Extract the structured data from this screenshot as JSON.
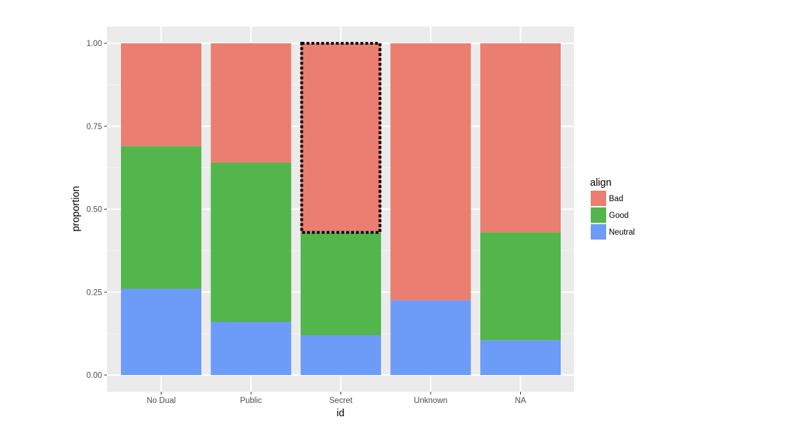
{
  "chart_data": {
    "type": "bar",
    "stacked": true,
    "xlabel": "id",
    "ylabel": "proportion",
    "categories": [
      "No Dual",
      "Public",
      "Secret",
      "Unknown",
      "NA"
    ],
    "ylim": [
      0,
      1
    ],
    "y_ticks": [
      "0.00",
      "0.25",
      "0.50",
      "0.75",
      "1.00"
    ],
    "series": [
      {
        "name": "Neutral",
        "color": "#6D9BF8",
        "values": [
          0.26,
          0.16,
          0.12,
          0.225,
          0.105
        ]
      },
      {
        "name": "Good",
        "color": "#53B64C",
        "values": [
          0.43,
          0.48,
          0.31,
          0.0,
          0.325
        ]
      },
      {
        "name": "Bad",
        "color": "#E97E71",
        "values": [
          0.31,
          0.36,
          0.57,
          0.775,
          0.57
        ]
      }
    ],
    "legend": {
      "title": "align",
      "position": "right",
      "entries": [
        "Bad",
        "Good",
        "Neutral"
      ]
    },
    "highlight": {
      "category": "Secret",
      "series": "Bad",
      "style": "dotted-outline"
    },
    "grid": true,
    "panel_background": "#EBEBEB"
  }
}
